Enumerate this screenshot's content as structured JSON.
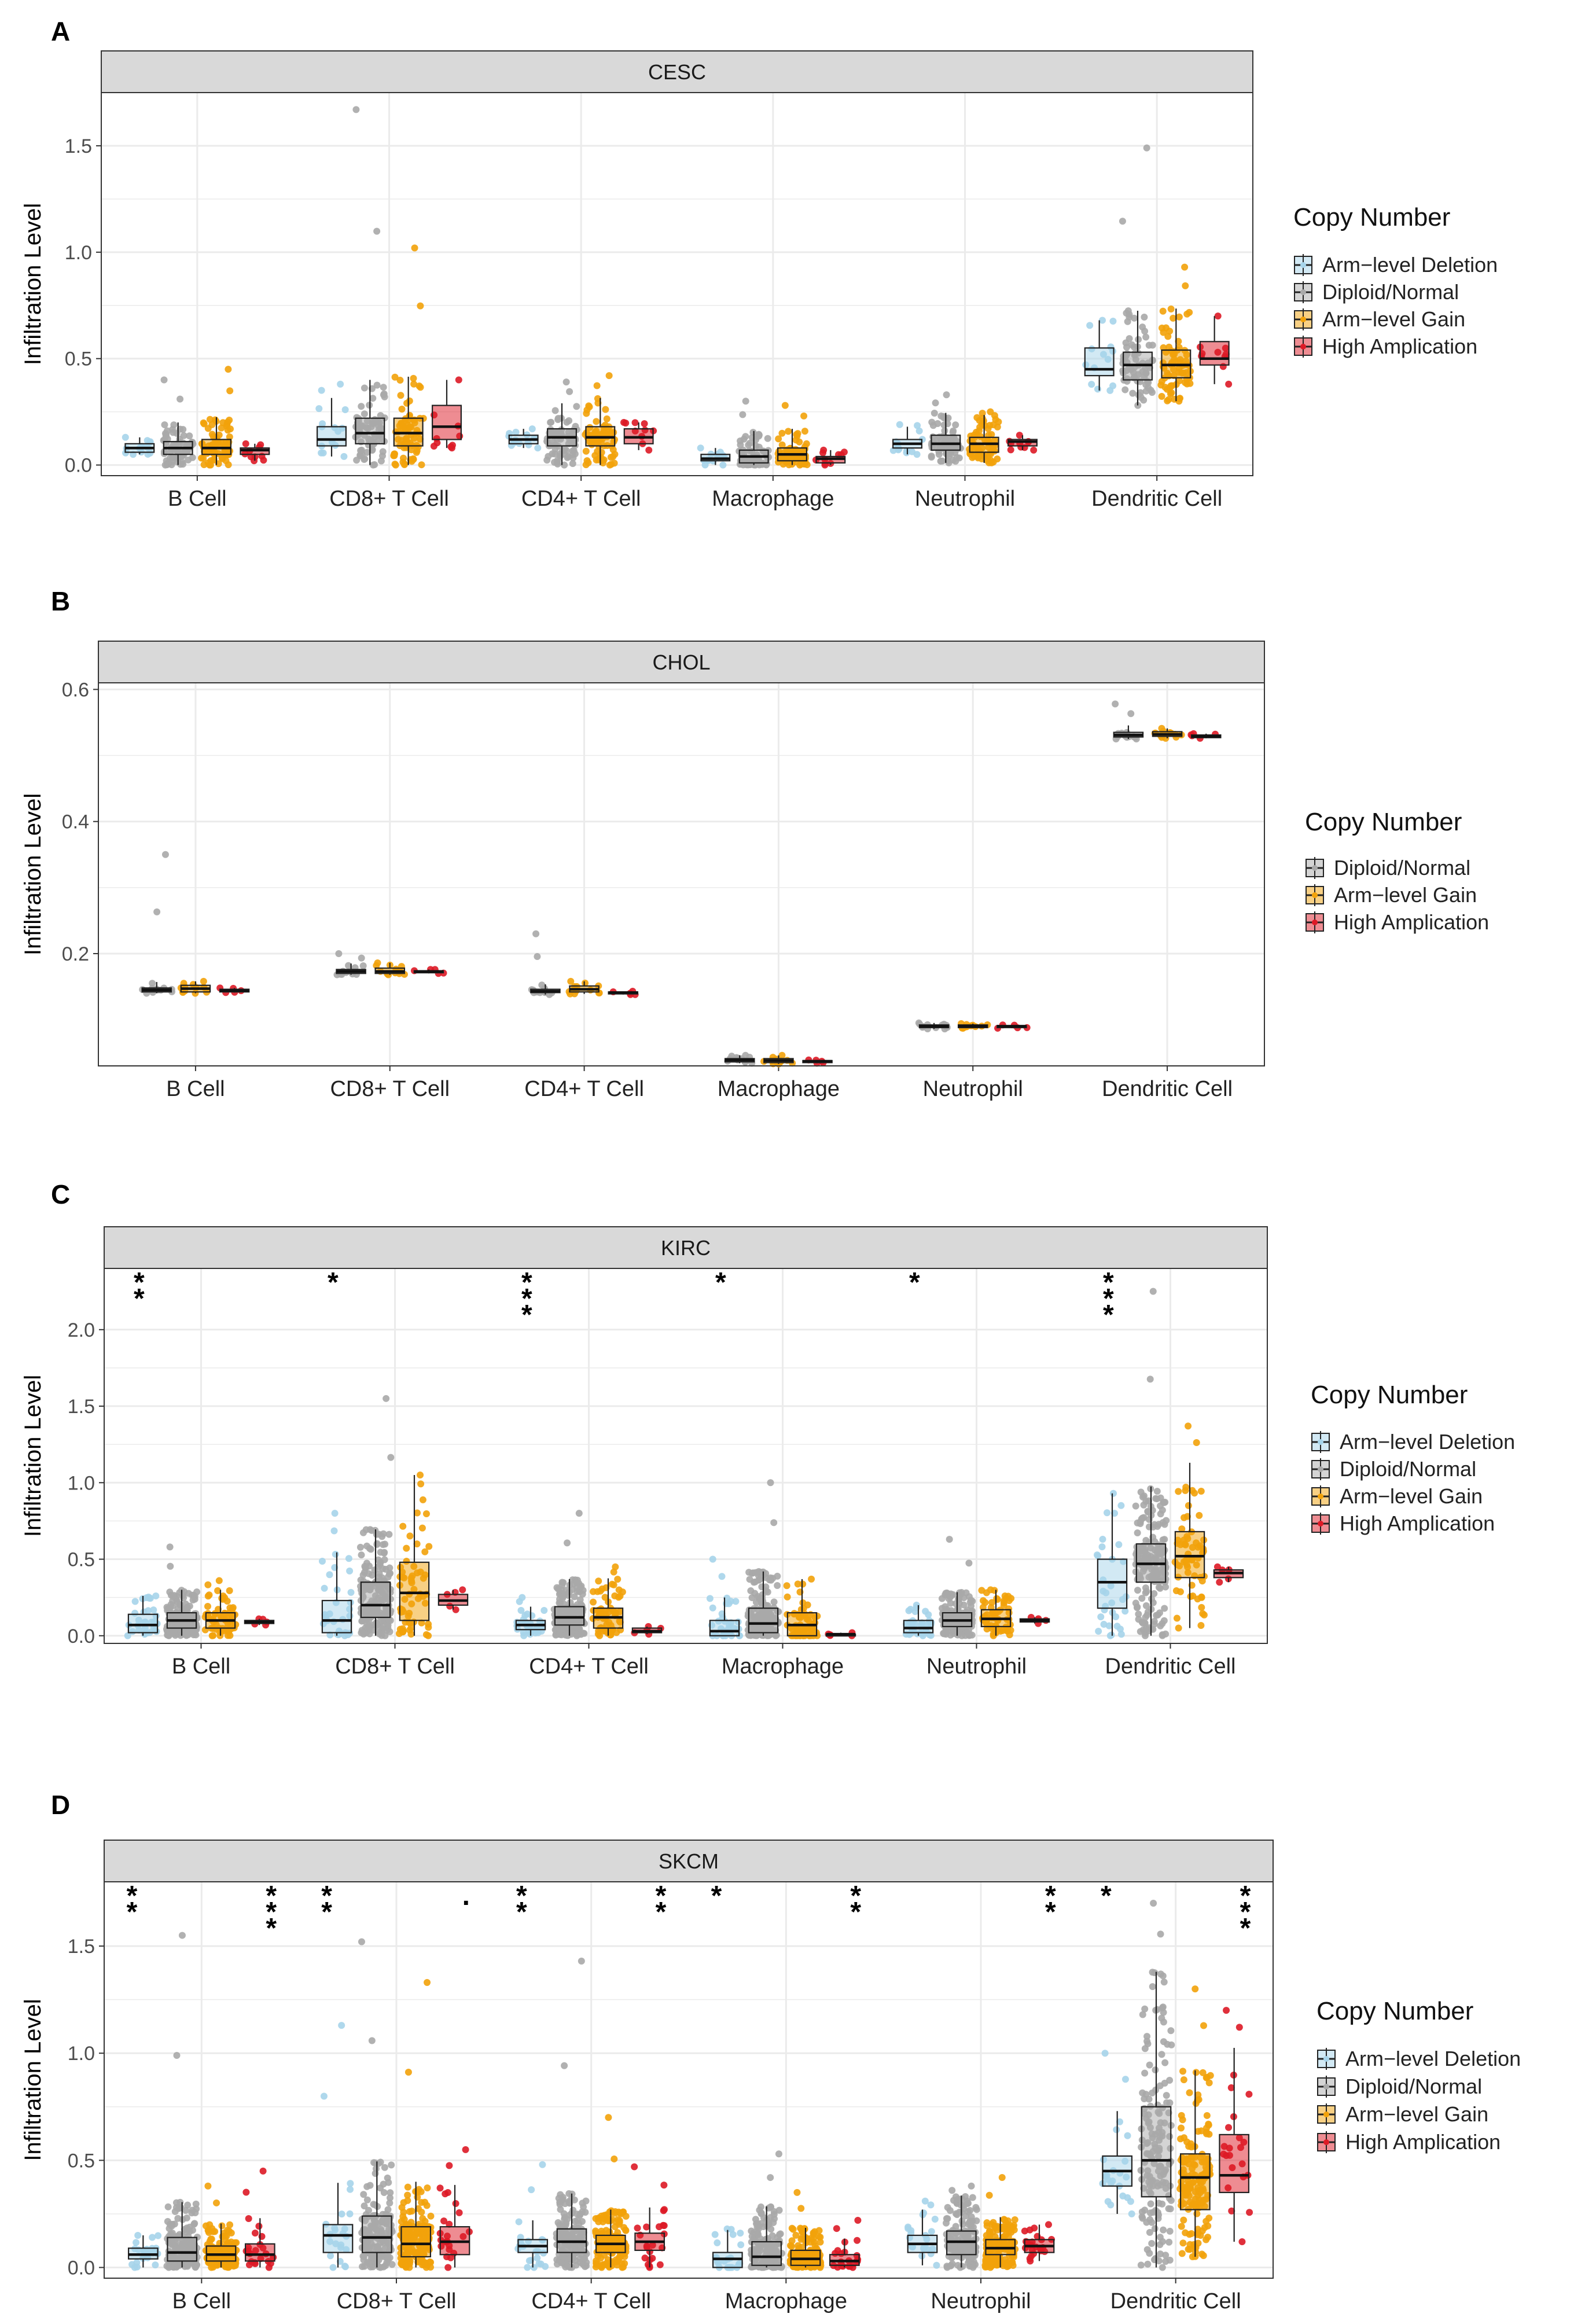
{
  "figure": {
    "panels": [
      "A",
      "B",
      "C",
      "D"
    ]
  },
  "colors": {
    "arm_level_deletion": "#a6d4ea",
    "diploid_normal": "#a9a9a9",
    "arm_level_gain": "#f2a20a",
    "high_amplication": "#dd1a26",
    "strip_background": "#d9d9d9",
    "grid": "#ebebeb"
  },
  "chart_data": [
    {
      "panel": "A",
      "type": "box",
      "title": "CESC",
      "xlabel": "",
      "ylabel": "Infiltration Level",
      "ylim": [
        -0.05,
        1.75
      ],
      "yticks": [
        0.0,
        0.5,
        1.0,
        1.5
      ],
      "ytick_labels": [
        "0.0",
        "0.5",
        "1.0",
        "1.5"
      ],
      "categories": [
        "B Cell",
        "CD8+ T Cell",
        "CD4+ T Cell",
        "Macrophage",
        "Neutrophil",
        "Dendritic Cell"
      ],
      "legend": {
        "title": "Copy Number",
        "entries": [
          "Arm−level Deletion",
          "Diploid/Normal",
          "Arm−level Gain",
          "High Amplication"
        ],
        "position": "right"
      },
      "series": [
        {
          "name": "Arm−level Deletion",
          "color_key": "arm_level_deletion",
          "n": 12,
          "boxes": [
            [
              0.06,
              0.08,
              0.1,
              0.05,
              0.13
            ],
            [
              0.09,
              0.12,
              0.18,
              0.04,
              0.38
            ],
            [
              0.1,
              0.12,
              0.14,
              0.08,
              0.17
            ],
            [
              0.02,
              0.03,
              0.05,
              0.0,
              0.08
            ],
            [
              0.08,
              0.1,
              0.12,
              0.05,
              0.19
            ],
            [
              0.42,
              0.45,
              0.55,
              0.35,
              0.68
            ]
          ]
        },
        {
          "name": "Diploid/Normal",
          "color_key": "diploid_normal",
          "n": 70,
          "boxes": [
            [
              0.05,
              0.08,
              0.11,
              0.0,
              0.4
            ],
            [
              0.1,
              0.15,
              0.22,
              0.0,
              1.67
            ],
            [
              0.09,
              0.13,
              0.17,
              0.0,
              0.39
            ],
            [
              0.01,
              0.04,
              0.07,
              0.0,
              0.3
            ],
            [
              0.07,
              0.1,
              0.14,
              0.01,
              0.33
            ],
            [
              0.4,
              0.47,
              0.53,
              0.28,
              1.49
            ]
          ]
        },
        {
          "name": "Arm−level Gain",
          "color_key": "arm_level_gain",
          "n": 70,
          "boxes": [
            [
              0.05,
              0.08,
              0.12,
              0.0,
              0.45
            ],
            [
              0.09,
              0.15,
              0.22,
              0.0,
              1.02
            ],
            [
              0.09,
              0.13,
              0.18,
              0.0,
              0.42
            ],
            [
              0.02,
              0.05,
              0.08,
              0.0,
              0.28
            ],
            [
              0.06,
              0.1,
              0.13,
              0.01,
              0.25
            ],
            [
              0.41,
              0.47,
              0.54,
              0.3,
              0.93
            ]
          ]
        },
        {
          "name": "High Amplication",
          "color_key": "high_amplication",
          "n": 8,
          "boxes": [
            [
              0.05,
              0.07,
              0.08,
              0.02,
              0.1
            ],
            [
              0.12,
              0.18,
              0.28,
              0.08,
              0.4
            ],
            [
              0.1,
              0.13,
              0.17,
              0.07,
              0.2
            ],
            [
              0.01,
              0.03,
              0.04,
              0.0,
              0.07
            ],
            [
              0.09,
              0.11,
              0.12,
              0.07,
              0.14
            ],
            [
              0.47,
              0.5,
              0.58,
              0.38,
              0.7
            ]
          ]
        }
      ],
      "significance": [
        "",
        "",
        "",
        "",
        "",
        ""
      ]
    },
    {
      "panel": "B",
      "type": "box",
      "title": "CHOL",
      "xlabel": "",
      "ylabel": "Infiltration Level",
      "ylim": [
        0.03,
        0.61
      ],
      "yticks": [
        0.2,
        0.4,
        0.6
      ],
      "ytick_labels": [
        "0.2",
        "0.4",
        "0.6"
      ],
      "categories": [
        "B Cell",
        "CD8+ T Cell",
        "CD4+ T Cell",
        "Macrophage",
        "Neutrophil",
        "Dendritic Cell"
      ],
      "legend": {
        "title": "Copy Number",
        "entries": [
          "Diploid/Normal",
          "Arm−level Gain",
          "High Amplication"
        ],
        "position": "right"
      },
      "series": [
        {
          "name": "Diploid/Normal",
          "color_key": "diploid_normal",
          "n": 10,
          "boxes": [
            [
              0.142,
              0.145,
              0.148,
              0.14,
              0.35
            ],
            [
              0.17,
              0.173,
              0.176,
              0.168,
              0.2
            ],
            [
              0.141,
              0.143,
              0.146,
              0.138,
              0.23
            ],
            [
              0.036,
              0.039,
              0.041,
              0.034,
              0.046
            ],
            [
              0.088,
              0.09,
              0.092,
              0.086,
              0.095
            ],
            [
              0.528,
              0.531,
              0.535,
              0.525,
              0.578
            ]
          ]
        },
        {
          "name": "Arm−level Gain",
          "color_key": "arm_level_gain",
          "n": 10,
          "boxes": [
            [
              0.142,
              0.147,
              0.152,
              0.14,
              0.158
            ],
            [
              0.17,
              0.173,
              0.178,
              0.168,
              0.186
            ],
            [
              0.142,
              0.146,
              0.151,
              0.139,
              0.158
            ],
            [
              0.035,
              0.038,
              0.041,
              0.033,
              0.046
            ],
            [
              0.088,
              0.09,
              0.092,
              0.087,
              0.094
            ],
            [
              0.529,
              0.532,
              0.536,
              0.526,
              0.541
            ]
          ]
        },
        {
          "name": "High Amplication",
          "color_key": "high_amplication",
          "n": 3,
          "boxes": [
            [
              0.142,
              0.144,
              0.146,
              0.141,
              0.148
            ],
            [
              0.171,
              0.173,
              0.174,
              0.17,
              0.176
            ],
            [
              0.139,
              0.141,
              0.142,
              0.138,
              0.143
            ],
            [
              0.035,
              0.037,
              0.038,
              0.034,
              0.039
            ],
            [
              0.088,
              0.09,
              0.091,
              0.087,
              0.092
            ],
            [
              0.527,
              0.529,
              0.531,
              0.526,
              0.533
            ]
          ]
        }
      ],
      "significance": [
        "",
        "",
        "",
        "",
        "",
        ""
      ]
    },
    {
      "panel": "C",
      "type": "box",
      "title": "KIRC",
      "xlabel": "",
      "ylabel": "Infiltration Level",
      "ylim": [
        -0.05,
        2.4
      ],
      "yticks": [
        0.0,
        0.5,
        1.0,
        1.5,
        2.0
      ],
      "ytick_labels": [
        "0.0",
        "0.5",
        "1.0",
        "1.5",
        "2.0"
      ],
      "categories": [
        "B Cell",
        "CD8+ T Cell",
        "CD4+ T Cell",
        "Macrophage",
        "Neutrophil",
        "Dendritic Cell"
      ],
      "legend": {
        "title": "Copy Number",
        "entries": [
          "Arm−level Deletion",
          "Diploid/Normal",
          "Arm−level Gain",
          "High Amplication"
        ],
        "position": "right"
      },
      "series": [
        {
          "name": "Arm−level Deletion",
          "color_key": "arm_level_deletion",
          "n": 30,
          "boxes": [
            [
              0.02,
              0.07,
              0.14,
              0.0,
              0.26
            ],
            [
              0.02,
              0.1,
              0.23,
              0.0,
              0.8
            ],
            [
              0.04,
              0.07,
              0.1,
              0.0,
              0.25
            ],
            [
              0.0,
              0.03,
              0.1,
              0.0,
              0.5
            ],
            [
              0.02,
              0.05,
              0.1,
              0.0,
              0.2
            ],
            [
              0.18,
              0.35,
              0.5,
              0.0,
              0.93
            ]
          ]
        },
        {
          "name": "Diploid/Normal",
          "color_key": "diploid_normal",
          "n": 180,
          "boxes": [
            [
              0.05,
              0.1,
              0.15,
              0.0,
              0.58
            ],
            [
              0.12,
              0.2,
              0.35,
              0.0,
              1.55
            ],
            [
              0.07,
              0.12,
              0.19,
              0.0,
              0.8
            ],
            [
              0.02,
              0.08,
              0.18,
              0.0,
              1.0
            ],
            [
              0.06,
              0.1,
              0.15,
              0.0,
              0.63
            ],
            [
              0.35,
              0.47,
              0.6,
              0.0,
              2.25
            ]
          ]
        },
        {
          "name": "Arm−level Gain",
          "color_key": "arm_level_gain",
          "n": 60,
          "boxes": [
            [
              0.05,
              0.1,
              0.15,
              0.0,
              0.36
            ],
            [
              0.1,
              0.28,
              0.48,
              0.0,
              1.05
            ],
            [
              0.05,
              0.12,
              0.18,
              0.0,
              0.45
            ],
            [
              0.0,
              0.07,
              0.15,
              0.0,
              0.37
            ],
            [
              0.06,
              0.11,
              0.17,
              0.0,
              0.3
            ],
            [
              0.38,
              0.52,
              0.68,
              0.05,
              1.37
            ]
          ]
        },
        {
          "name": "High Amplication",
          "color_key": "high_amplication",
          "n": 3,
          "boxes": [
            [
              0.08,
              0.09,
              0.1,
              0.07,
              0.11
            ],
            [
              0.2,
              0.23,
              0.27,
              0.17,
              0.3
            ],
            [
              0.02,
              0.03,
              0.05,
              0.01,
              0.06
            ],
            [
              0.0,
              0.01,
              0.01,
              0.0,
              0.02
            ],
            [
              0.09,
              0.1,
              0.11,
              0.08,
              0.12
            ],
            [
              0.38,
              0.41,
              0.43,
              0.35,
              0.45
            ]
          ]
        }
      ],
      "significance": [
        "**",
        "*",
        "***",
        "*",
        "*",
        "***"
      ]
    },
    {
      "panel": "D",
      "type": "box",
      "title": "SKCM",
      "xlabel": "",
      "ylabel": "Infiltration Level",
      "ylim": [
        -0.05,
        1.8
      ],
      "yticks": [
        0.0,
        0.5,
        1.0,
        1.5
      ],
      "ytick_labels": [
        "0.0",
        "0.5",
        "1.0",
        "1.5"
      ],
      "categories": [
        "B Cell",
        "CD8+ T Cell",
        "CD4+ T Cell",
        "Macrophage",
        "Neutrophil",
        "Dendritic Cell"
      ],
      "legend": {
        "title": "Copy Number",
        "entries": [
          "Arm−level Deletion",
          "Diploid/Normal",
          "Arm−level Gain",
          "High Amplication"
        ],
        "position": "right"
      },
      "series": [
        {
          "name": "Arm−level Deletion",
          "color_key": "arm_level_deletion",
          "n": 20,
          "boxes": [
            [
              0.04,
              0.06,
              0.09,
              0.0,
              0.15
            ],
            [
              0.07,
              0.15,
              0.2,
              0.0,
              1.13
            ],
            [
              0.07,
              0.1,
              0.13,
              0.0,
              0.48
            ],
            [
              0.0,
              0.04,
              0.07,
              0.0,
              0.18
            ],
            [
              0.07,
              0.11,
              0.15,
              0.01,
              0.31
            ],
            [
              0.38,
              0.45,
              0.52,
              0.25,
              1.0
            ]
          ]
        },
        {
          "name": "Diploid/Normal",
          "color_key": "diploid_normal",
          "n": 160,
          "boxes": [
            [
              0.03,
              0.07,
              0.14,
              0.0,
              1.55
            ],
            [
              0.07,
              0.14,
              0.24,
              0.0,
              1.52
            ],
            [
              0.07,
              0.12,
              0.18,
              0.0,
              1.43
            ],
            [
              0.01,
              0.05,
              0.12,
              0.0,
              0.53
            ],
            [
              0.06,
              0.12,
              0.17,
              0.0,
              0.38
            ],
            [
              0.33,
              0.5,
              0.75,
              0.0,
              1.7
            ]
          ]
        },
        {
          "name": "Arm−level Gain",
          "color_key": "arm_level_gain",
          "n": 160,
          "boxes": [
            [
              0.03,
              0.06,
              0.1,
              0.0,
              0.38
            ],
            [
              0.05,
              0.11,
              0.19,
              0.0,
              1.33
            ],
            [
              0.07,
              0.11,
              0.15,
              0.0,
              0.7
            ],
            [
              0.01,
              0.04,
              0.08,
              0.0,
              0.35
            ],
            [
              0.06,
              0.09,
              0.13,
              0.0,
              0.42
            ],
            [
              0.27,
              0.42,
              0.53,
              0.05,
              1.3
            ]
          ]
        },
        {
          "name": "High Amplication",
          "color_key": "high_amplication",
          "n": 20,
          "boxes": [
            [
              0.03,
              0.06,
              0.11,
              0.0,
              0.45
            ],
            [
              0.06,
              0.12,
              0.19,
              0.0,
              0.55
            ],
            [
              0.08,
              0.12,
              0.16,
              0.0,
              0.47
            ],
            [
              0.01,
              0.03,
              0.06,
              0.0,
              0.22
            ],
            [
              0.07,
              0.1,
              0.13,
              0.03,
              0.2
            ],
            [
              0.35,
              0.43,
              0.62,
              0.12,
              1.2
            ]
          ]
        }
      ],
      "significance": [
        "**|***",
        "**|.",
        "**|**",
        "*|**",
        "|**",
        "*|***"
      ]
    }
  ]
}
